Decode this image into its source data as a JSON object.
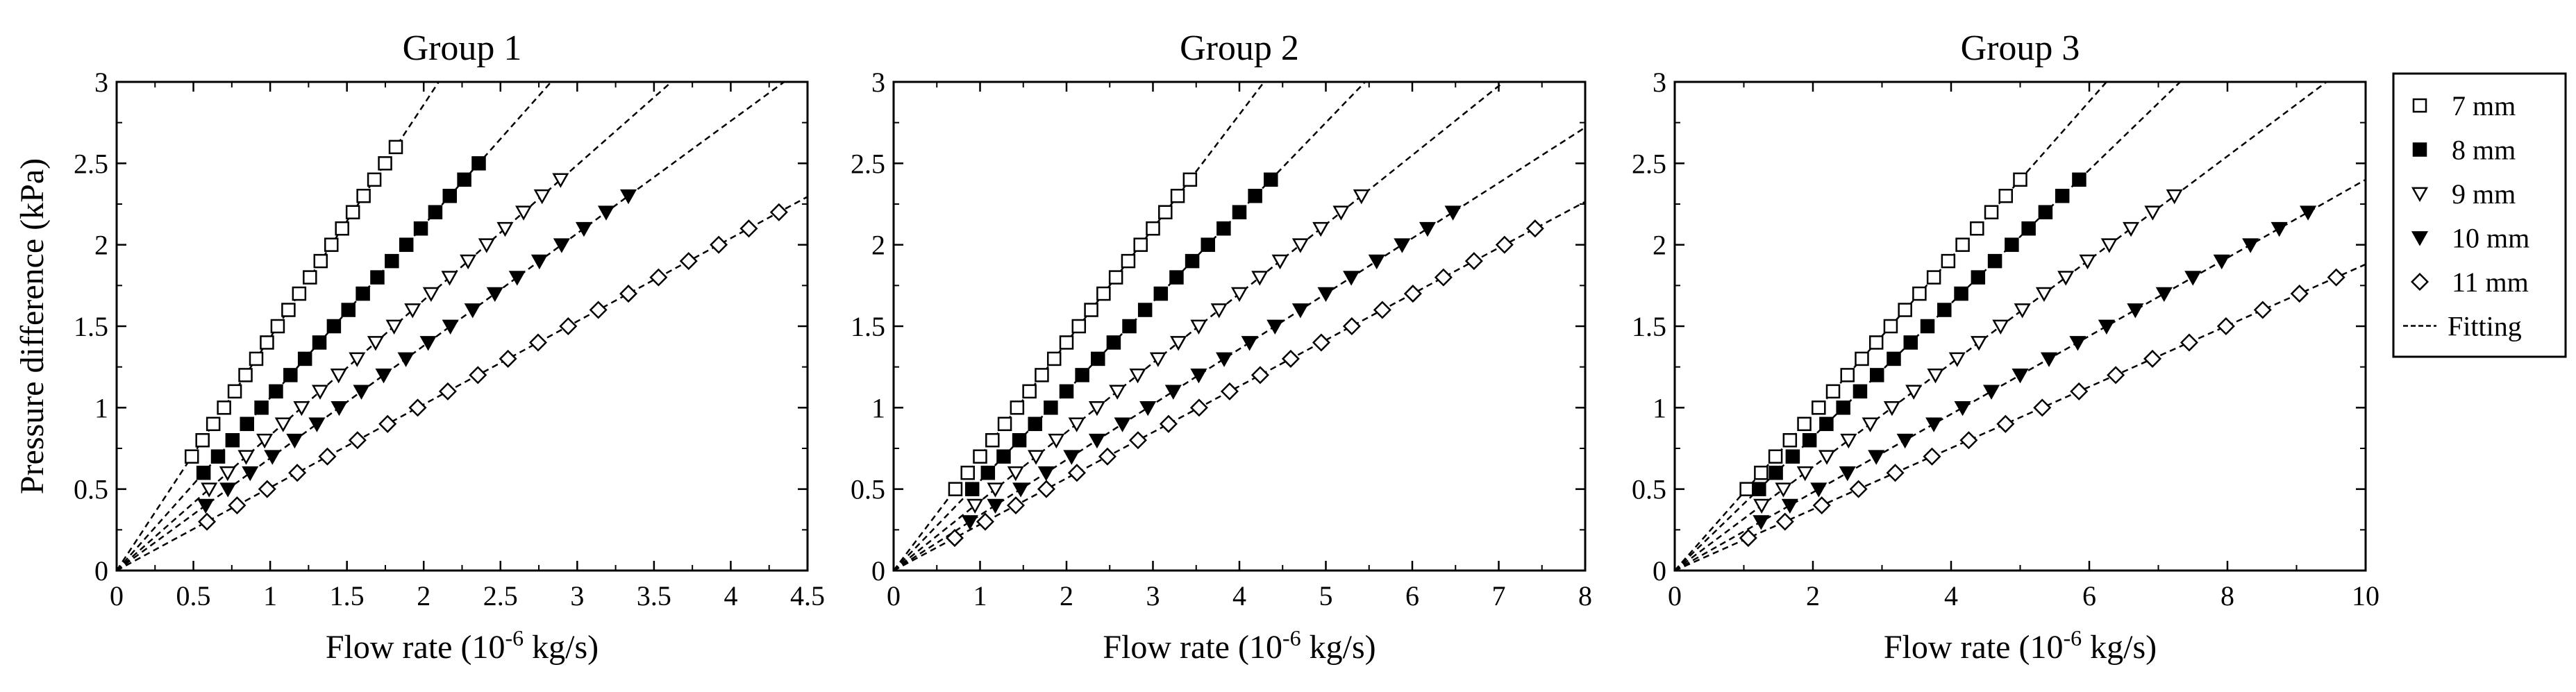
{
  "chart_data": [
    {
      "type": "scatter",
      "title": "Group 1",
      "xlabel": "Flow rate (10",
      "xlabel_sup": "-6",
      "xlabel_tail": " kg/s)",
      "ylabel": "Pressure difference (kPa)",
      "xlim": [
        0,
        4.5
      ],
      "ylim": [
        0,
        3
      ],
      "xticks": [
        "0",
        "0.5",
        "1",
        "1.5",
        "2",
        "2.5",
        "3",
        "3.5",
        "4",
        "4.5"
      ],
      "yticks": [
        "0",
        "0.5",
        "1",
        "1.5",
        "2",
        "2.5",
        "3"
      ],
      "series": [
        {
          "name": "7 mm",
          "slope": 1.43,
          "y_start": 0.7,
          "y_end": 2.6,
          "y_step": 0.1
        },
        {
          "name": "8 mm",
          "slope": 1.06,
          "y_start": 0.6,
          "y_end": 2.5,
          "y_step": 0.1
        },
        {
          "name": "9 mm",
          "slope": 0.83,
          "y_start": 0.5,
          "y_end": 2.4,
          "y_step": 0.1
        },
        {
          "name": "10 mm",
          "slope": 0.69,
          "y_start": 0.4,
          "y_end": 2.3,
          "y_step": 0.1
        },
        {
          "name": "11 mm",
          "slope": 0.51,
          "y_start": 0.3,
          "y_end": 2.2,
          "y_step": 0.1
        }
      ]
    },
    {
      "type": "scatter",
      "title": "Group 2",
      "xlabel": "Flow rate (10",
      "xlabel_sup": "-6",
      "xlabel_tail": " kg/s)",
      "ylabel": "",
      "xlim": [
        0,
        8
      ],
      "ylim": [
        0,
        3
      ],
      "xticks": [
        "0",
        "1",
        "2",
        "3",
        "4",
        "5",
        "6",
        "7",
        "8"
      ],
      "yticks": [
        "0",
        "0.5",
        "1",
        "1.5",
        "2",
        "2.5",
        "3"
      ],
      "series": [
        {
          "name": "7 mm",
          "slope": 0.7,
          "y_start": 0.5,
          "y_end": 2.4,
          "y_step": 0.1
        },
        {
          "name": "8 mm",
          "slope": 0.55,
          "y_start": 0.5,
          "y_end": 2.4,
          "y_step": 0.1
        },
        {
          "name": "9 mm",
          "slope": 0.425,
          "y_start": 0.4,
          "y_end": 2.3,
          "y_step": 0.1
        },
        {
          "name": "10 mm",
          "slope": 0.34,
          "y_start": 0.3,
          "y_end": 2.2,
          "y_step": 0.1
        },
        {
          "name": "11 mm",
          "slope": 0.283,
          "y_start": 0.2,
          "y_end": 2.1,
          "y_step": 0.1
        }
      ]
    },
    {
      "type": "scatter",
      "title": "Group 3",
      "xlabel": "Flow rate (10",
      "xlabel_sup": "-6",
      "xlabel_tail": " kg/s)",
      "ylabel": "",
      "xlim": [
        0,
        10
      ],
      "ylim": [
        0,
        3
      ],
      "xticks": [
        "0",
        "2",
        "4",
        "6",
        "8",
        "10"
      ],
      "yticks": [
        "0",
        "0.5",
        "1",
        "1.5",
        "2",
        "2.5",
        "3"
      ],
      "series": [
        {
          "name": "7 mm",
          "slope": 0.48,
          "y_start": 0.5,
          "y_end": 2.4,
          "y_step": 0.1
        },
        {
          "name": "8 mm",
          "slope": 0.41,
          "y_start": 0.5,
          "y_end": 2.4,
          "y_step": 0.1
        },
        {
          "name": "9 mm",
          "slope": 0.318,
          "y_start": 0.4,
          "y_end": 2.3,
          "y_step": 0.1
        },
        {
          "name": "10 mm",
          "slope": 0.24,
          "y_start": 0.3,
          "y_end": 2.2,
          "y_step": 0.1
        },
        {
          "name": "11 mm",
          "slope": 0.188,
          "y_start": 0.2,
          "y_end": 1.8,
          "y_step": 0.1
        }
      ]
    }
  ],
  "legend": {
    "placement": "right",
    "items": [
      {
        "label": "7 mm",
        "marker": "square-open"
      },
      {
        "label": "8 mm",
        "marker": "square-filled"
      },
      {
        "label": "9 mm",
        "marker": "triangle-down-open"
      },
      {
        "label": "10 mm",
        "marker": "triangle-down-filled"
      },
      {
        "label": "11 mm",
        "marker": "diamond-open"
      },
      {
        "label": "Fitting",
        "marker": "dashed-line"
      }
    ]
  }
}
